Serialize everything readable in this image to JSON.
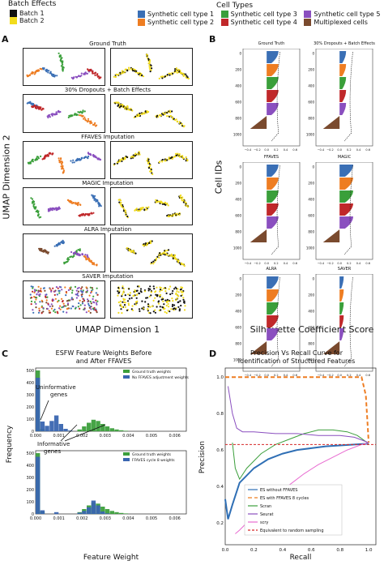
{
  "legend": {
    "batch_title": "Batch Effects",
    "batches": [
      {
        "label": "Batch 1",
        "color": "#111111"
      },
      {
        "label": "Batch 2",
        "color": "#f2dc1c"
      }
    ],
    "cell_title": "Cell Types",
    "cell_types": [
      {
        "label": "Synthetic cell type 1",
        "color": "#3a6fb5"
      },
      {
        "label": "Synthetic cell type 2",
        "color": "#ee7d22"
      },
      {
        "label": "Synthetic cell type 3",
        "color": "#3a9f3a"
      },
      {
        "label": "Synthetic cell type 4",
        "color": "#c0282a"
      },
      {
        "label": "Synthetic cell type 5",
        "color": "#8a4fbf"
      },
      {
        "label": "Multiplexed cells",
        "color": "#7a4a2e"
      }
    ]
  },
  "panel_a": {
    "letter": "A",
    "y_label": "UMAP Dimension 2",
    "x_label": "UMAP Dimension 1",
    "titles": [
      "Ground Truth",
      "30% Dropouts + Batch Effects",
      "FFAVES Imputation",
      "MAGIC Imputation",
      "ALRA Imputation",
      "SAVER Imputation"
    ]
  },
  "panel_b": {
    "letter": "B",
    "y_label": "Cell IDs",
    "x_label": "Silhouette Coefficient Score",
    "titles": [
      "Ground Truth",
      "30% Dropouts + Batch Effects",
      "FFAVES",
      "MAGIC",
      "ALRA",
      "SAVER"
    ],
    "y_ticks": [
      "0",
      "200",
      "400",
      "600",
      "800",
      "1000"
    ],
    "x_ticks": [
      "−0.4",
      "−0.2",
      "0.0",
      "0.2",
      "0.4",
      "0.6"
    ]
  },
  "chart_data": [
    {
      "type": "bar",
      "panel": "C",
      "title": "ESFW Feature Weights Before\nand After FFAVES",
      "xlabel": "Feature Weight",
      "ylabel": "Frequency",
      "xlim": [
        0,
        0.0065
      ],
      "x_ticks": [
        "0.000",
        "0.001",
        "0.002",
        "0.003",
        "0.004",
        "0.005",
        "0.006"
      ],
      "subplots": [
        {
          "ylim": [
            0,
            520
          ],
          "y_ticks": [
            "0",
            "100",
            "200",
            "300",
            "400",
            "500"
          ],
          "series": [
            {
              "name": "Ground truth weights",
              "color": "#3c9f3c",
              "bins": [
                [
                  0.0,
                  0.0002,
                  500
                ],
                [
                  0.0002,
                  0.0004,
                  20
                ],
                [
                  0.0018,
                  0.002,
                  15
                ],
                [
                  0.002,
                  0.0022,
                  40
                ],
                [
                  0.0022,
                  0.0024,
                  70
                ],
                [
                  0.0024,
                  0.0026,
                  95
                ],
                [
                  0.0026,
                  0.0028,
                  85
                ],
                [
                  0.0028,
                  0.003,
                  60
                ],
                [
                  0.003,
                  0.0032,
                  40
                ],
                [
                  0.0032,
                  0.0034,
                  25
                ],
                [
                  0.0034,
                  0.0036,
                  15
                ],
                [
                  0.0036,
                  0.0038,
                  8
                ],
                [
                  0.0038,
                  0.004,
                  4
                ]
              ]
            },
            {
              "name": "No FFAVES adjustment weights",
              "color": "#3a66b0",
              "bins": [
                [
                  0.0,
                  0.0002,
                  440
                ],
                [
                  0.0002,
                  0.0004,
                  80
                ],
                [
                  0.0004,
                  0.0006,
                  45
                ],
                [
                  0.0006,
                  0.0008,
                  85
                ],
                [
                  0.0008,
                  0.001,
                  130
                ],
                [
                  0.001,
                  0.0012,
                  60
                ],
                [
                  0.0012,
                  0.0014,
                  20
                ],
                [
                  0.0014,
                  0.0016,
                  6
                ]
              ]
            }
          ]
        },
        {
          "ylim": [
            0,
            520
          ],
          "y_ticks": [
            "0",
            "100",
            "200",
            "300",
            "400",
            "500"
          ],
          "series": [
            {
              "name": "Ground truth weights",
              "color": "#3c9f3c",
              "bins": [
                [
                  0.0,
                  0.0002,
                  500
                ],
                [
                  0.0002,
                  0.0004,
                  20
                ],
                [
                  0.0018,
                  0.002,
                  15
                ],
                [
                  0.002,
                  0.0022,
                  40
                ],
                [
                  0.0022,
                  0.0024,
                  70
                ],
                [
                  0.0024,
                  0.0026,
                  95
                ],
                [
                  0.0026,
                  0.0028,
                  85
                ],
                [
                  0.0028,
                  0.003,
                  60
                ],
                [
                  0.003,
                  0.0032,
                  40
                ],
                [
                  0.0032,
                  0.0034,
                  25
                ],
                [
                  0.0034,
                  0.0036,
                  15
                ],
                [
                  0.0036,
                  0.0038,
                  8
                ],
                [
                  0.0038,
                  0.004,
                  4
                ]
              ]
            },
            {
              "name": "FFAVES cycle 8 weights",
              "color": "#3a66b0",
              "bins": [
                [
                  0.0,
                  0.0002,
                  470
                ],
                [
                  0.0002,
                  0.0004,
                  30
                ],
                [
                  0.0008,
                  0.001,
                  15
                ],
                [
                  0.0018,
                  0.002,
                  10
                ],
                [
                  0.002,
                  0.0022,
                  25
                ],
                [
                  0.0022,
                  0.0024,
                  55
                ],
                [
                  0.0024,
                  0.0026,
                  110
                ],
                [
                  0.0026,
                  0.0028,
                  70
                ],
                [
                  0.0028,
                  0.003,
                  20
                ],
                [
                  0.003,
                  0.0032,
                  5
                ]
              ]
            }
          ]
        }
      ],
      "annotations": [
        "Uninformative\ngenes",
        "Informative\ngenes"
      ]
    },
    {
      "type": "line",
      "panel": "D",
      "title": "Precision Vs Recall Curve for\nIdentification of Structured Features",
      "xlabel": "Recall",
      "ylabel": "Precision",
      "xlim": [
        0,
        1.05
      ],
      "ylim": [
        0.08,
        1.05
      ],
      "x_ticks": [
        "0.0",
        "0.2",
        "0.4",
        "0.6",
        "0.8",
        "1.0"
      ],
      "y_ticks": [
        "0.2",
        "0.4",
        "0.6",
        "0.8",
        "1.0"
      ],
      "series": [
        {
          "name": "ES without FFAVES",
          "color": "#2f6fb5",
          "dash": "",
          "points": [
            [
              0.0,
              0.33
            ],
            [
              0.02,
              0.22
            ],
            [
              0.05,
              0.3
            ],
            [
              0.1,
              0.42
            ],
            [
              0.2,
              0.5
            ],
            [
              0.3,
              0.55
            ],
            [
              0.4,
              0.58
            ],
            [
              0.5,
              0.6
            ],
            [
              0.6,
              0.61
            ],
            [
              0.7,
              0.62
            ],
            [
              0.8,
              0.625
            ],
            [
              0.9,
              0.63
            ],
            [
              1.0,
              0.635
            ]
          ]
        },
        {
          "name": "ES with FFAVES 8 cycles",
          "color": "#ee7d22",
          "dash": "5,3",
          "points": [
            [
              0.0,
              1.0
            ],
            [
              0.2,
              1.0
            ],
            [
              0.4,
              1.0
            ],
            [
              0.6,
              1.0
            ],
            [
              0.8,
              1.0
            ],
            [
              0.95,
              1.0
            ],
            [
              0.98,
              0.9
            ],
            [
              1.0,
              0.64
            ]
          ]
        },
        {
          "name": "Scran",
          "color": "#3c9f3c",
          "dash": "",
          "points": [
            [
              0.05,
              0.64
            ],
            [
              0.07,
              0.5
            ],
            [
              0.1,
              0.44
            ],
            [
              0.15,
              0.5
            ],
            [
              0.25,
              0.58
            ],
            [
              0.35,
              0.63
            ],
            [
              0.45,
              0.66
            ],
            [
              0.55,
              0.69
            ],
            [
              0.65,
              0.71
            ],
            [
              0.75,
              0.71
            ],
            [
              0.85,
              0.7
            ],
            [
              0.92,
              0.68
            ],
            [
              1.0,
              0.635
            ]
          ]
        },
        {
          "name": "Seurat",
          "color": "#8a4fbf",
          "dash": "",
          "points": [
            [
              0.02,
              0.95
            ],
            [
              0.05,
              0.8
            ],
            [
              0.08,
              0.72
            ],
            [
              0.12,
              0.7
            ],
            [
              0.2,
              0.7
            ],
            [
              0.35,
              0.69
            ],
            [
              0.5,
              0.69
            ],
            [
              0.65,
              0.68
            ],
            [
              0.8,
              0.68
            ],
            [
              0.9,
              0.67
            ],
            [
              1.0,
              0.64
            ]
          ]
        },
        {
          "name": "scry",
          "color": "#e86ad0",
          "dash": "",
          "points": [
            [
              0.07,
              0.14
            ],
            [
              0.1,
              0.16
            ],
            [
              0.15,
              0.2
            ],
            [
              0.25,
              0.28
            ],
            [
              0.35,
              0.35
            ],
            [
              0.45,
              0.41
            ],
            [
              0.55,
              0.47
            ],
            [
              0.65,
              0.52
            ],
            [
              0.75,
              0.56
            ],
            [
              0.85,
              0.6
            ],
            [
              0.95,
              0.63
            ],
            [
              1.0,
              0.64
            ]
          ]
        },
        {
          "name": "Equivalent to random sampling",
          "color": "#d62728",
          "dash": "3,2",
          "points": [
            [
              0.0,
              0.63
            ],
            [
              1.05,
              0.63
            ]
          ]
        }
      ]
    }
  ],
  "panel_c_letter": "C",
  "panel_d_letter": "D"
}
